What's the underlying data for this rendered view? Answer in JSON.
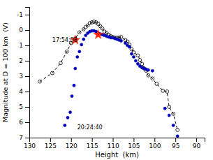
{
  "chart_data": {
    "type": "scatter",
    "xlabel": "Height  (km)",
    "ylabel": "Magnitude at D = 100 km  (V)",
    "xlim": [
      130,
      88
    ],
    "ylim": [
      7,
      -1.5
    ],
    "xticks": [
      130,
      125,
      120,
      115,
      110,
      105,
      100,
      95,
      90
    ],
    "yticks": [
      -1,
      0,
      1,
      2,
      3,
      4,
      5,
      6,
      7
    ],
    "grid": false,
    "series": [
      {
        "type": "line",
        "line_style": "dashed",
        "color": "#000000",
        "x": [
          127.5,
          124.5,
          122.5,
          121.0,
          120.0,
          119.0,
          118.0,
          117.0,
          116.0,
          115.0,
          114.0,
          113.0,
          112.0,
          111.0,
          110.0,
          109.0,
          108.0,
          107.0,
          106.0,
          105.0,
          104.0,
          103.0,
          102.0,
          101.5,
          100.5,
          99.5,
          98.0,
          97.0,
          96.5,
          95.5,
          94.5
        ],
        "values": [
          3.35,
          2.8,
          2.15,
          1.4,
          0.85,
          0.55,
          0.15,
          -0.05,
          -0.3,
          -0.5,
          -0.5,
          -0.25,
          0.1,
          0.3,
          0.45,
          0.5,
          0.45,
          0.65,
          0.95,
          1.45,
          1.65,
          2.2,
          2.65,
          2.95,
          3.15,
          3.5,
          3.95,
          4.0,
          5.0,
          5.45,
          6.5
        ]
      },
      {
        "type": "scatter",
        "marker": "open-circle",
        "color": "#000000",
        "x": [
          127.5,
          124.5,
          122.5,
          121.0,
          120.0,
          119.0,
          118.0,
          117.0,
          116.5,
          116.0,
          115.5,
          115.0,
          114.5,
          114.0,
          113.5,
          113.0,
          112.5,
          112.0,
          111.5,
          111.0,
          110.5,
          110.0,
          109.5,
          109.0,
          108.5,
          108.0,
          107.0,
          106.5,
          106.0,
          105.5,
          105.0,
          104.0,
          103.5,
          103.0,
          102.5,
          102.0,
          101.5,
          100.5,
          99.5,
          98.0,
          97.0,
          96.5,
          95.5,
          94.5
        ],
        "values": [
          3.35,
          2.8,
          2.15,
          1.4,
          0.85,
          0.55,
          0.15,
          -0.05,
          -0.2,
          -0.3,
          -0.45,
          -0.5,
          -0.55,
          -0.5,
          -0.4,
          -0.25,
          -0.1,
          0.1,
          0.2,
          0.3,
          0.4,
          0.45,
          0.5,
          0.5,
          0.5,
          0.45,
          0.65,
          0.75,
          0.95,
          1.25,
          1.45,
          1.65,
          1.95,
          2.2,
          2.5,
          2.65,
          2.95,
          3.15,
          3.5,
          3.95,
          4.0,
          5.0,
          5.45,
          6.5
        ]
      },
      {
        "type": "scatter",
        "marker": "circle",
        "color": "#0000bb",
        "x": [
          121.5,
          120.8,
          120.2,
          119.8,
          119.3,
          119.0,
          118.5,
          118.0,
          117.5,
          117.0,
          116.5,
          116.0,
          115.5,
          115.0,
          114.5,
          114.0,
          113.5,
          113.0,
          112.5,
          112.0,
          111.5,
          111.0,
          110.5,
          110.0,
          109.5,
          109.0,
          108.5,
          108.0,
          107.0,
          106.5,
          106.0,
          105.5,
          105.0,
          104.5,
          104.0,
          103.5,
          103.0,
          102.5,
          102.0,
          101.5,
          100.5,
          97.5,
          96.5,
          95.5,
          94.5
        ],
        "values": [
          6.2,
          5.7,
          5.35,
          4.3,
          3.6,
          2.5,
          1.75,
          1.4,
          0.95,
          0.6,
          0.35,
          0.2,
          0.1,
          0.05,
          0.05,
          0.1,
          0.2,
          0.25,
          0.3,
          0.35,
          0.4,
          0.45,
          0.5,
          0.5,
          0.55,
          0.6,
          0.65,
          0.7,
          0.85,
          1.0,
          1.1,
          1.55,
          1.75,
          2.0,
          2.2,
          2.35,
          2.45,
          2.5,
          2.55,
          2.6,
          2.65,
          5.1,
          5.55,
          6.2,
          6.9
        ]
      },
      {
        "type": "scatter",
        "marker": "star",
        "color": "#ff2200",
        "x": [
          119.0,
          113.5
        ],
        "values": [
          0.65,
          0.3
        ]
      }
    ],
    "annotations": [
      {
        "text": "17:54:08",
        "x": 124.5,
        "y": 0.75
      },
      {
        "text": "20:24:40",
        "x": 118.5,
        "y": 6.45
      }
    ]
  }
}
